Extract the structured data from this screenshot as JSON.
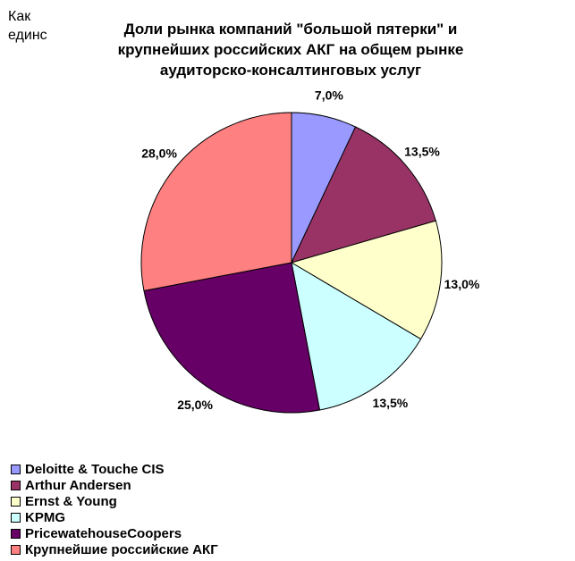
{
  "corner_text": [
    "Как",
    "единс"
  ],
  "chart_data": {
    "type": "pie",
    "title": "Доли рынка компаний \"большой пятерки\" и крупнейших российских АКГ на общем рынке аудиторско-консалтинговых услуг",
    "categories": [
      "Deloitte & Touche CIS",
      "Arthur Andersen",
      "Ernst & Young",
      "KPMG",
      "PricewatehouseCoopers",
      "Крупнейшие российские АКГ"
    ],
    "values": [
      7.0,
      13.5,
      13.0,
      13.5,
      25.0,
      28.0
    ],
    "data_labels": [
      "7,0%",
      "13,5%",
      "13,0%",
      "13,5%",
      "25,0%",
      "28,0%"
    ],
    "colors": [
      "#9999FF",
      "#993366",
      "#FFFFCC",
      "#CCFFFF",
      "#660066",
      "#FF8080"
    ],
    "start_angle": "12 o'clock",
    "direction": "clockwise",
    "legend_position": "bottom-left"
  }
}
